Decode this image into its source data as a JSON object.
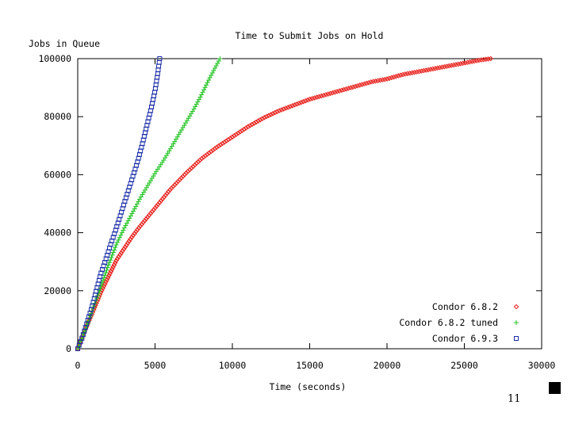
{
  "page": {
    "number": "11"
  },
  "chart_data": {
    "type": "scatter",
    "title": "Time to Submit Jobs on Hold",
    "xlabel": "Time (seconds)",
    "ylabel": "Jobs in Queue",
    "xlim": [
      0,
      30000
    ],
    "ylim": [
      0,
      100000
    ],
    "x_ticks": [
      "0",
      "5000",
      "10000",
      "15000",
      "20000",
      "25000",
      "30000"
    ],
    "y_ticks": [
      "0",
      "20000",
      "40000",
      "60000",
      "80000",
      "100000"
    ],
    "grid": false,
    "legend_position": "bottom-right",
    "series": [
      {
        "name": "Condor 6.8.2",
        "color": "#e8211c",
        "marker": "diamond",
        "points": [
          [
            0,
            0
          ],
          [
            300,
            4000
          ],
          [
            600,
            8000
          ],
          [
            1000,
            13000
          ],
          [
            1500,
            19500
          ],
          [
            2000,
            25000
          ],
          [
            2500,
            30500
          ],
          [
            3000,
            34500
          ],
          [
            3500,
            38500
          ],
          [
            4000,
            42000
          ],
          [
            5000,
            48500
          ],
          [
            6000,
            55000
          ],
          [
            7000,
            60500
          ],
          [
            8000,
            65500
          ],
          [
            9000,
            69500
          ],
          [
            10000,
            73000
          ],
          [
            11000,
            76500
          ],
          [
            12000,
            79500
          ],
          [
            13000,
            82000
          ],
          [
            14000,
            84000
          ],
          [
            15000,
            86000
          ],
          [
            16000,
            87500
          ],
          [
            17000,
            89000
          ],
          [
            18000,
            90500
          ],
          [
            19000,
            92000
          ],
          [
            20000,
            93000
          ],
          [
            21000,
            94500
          ],
          [
            22000,
            95500
          ],
          [
            23000,
            96500
          ],
          [
            24000,
            97500
          ],
          [
            25000,
            98500
          ],
          [
            26000,
            99500
          ],
          [
            26700,
            100000
          ]
        ]
      },
      {
        "name": "Condor 6.8.2 tuned",
        "color": "#22c422",
        "marker": "plus",
        "points": [
          [
            0,
            0
          ],
          [
            300,
            4000
          ],
          [
            600,
            8000
          ],
          [
            1000,
            14000
          ],
          [
            1500,
            21500
          ],
          [
            2000,
            29000
          ],
          [
            2500,
            36000
          ],
          [
            3000,
            41500
          ],
          [
            3500,
            46500
          ],
          [
            4000,
            51500
          ],
          [
            4500,
            56000
          ],
          [
            5000,
            60500
          ],
          [
            5500,
            64500
          ],
          [
            6000,
            69000
          ],
          [
            6500,
            73500
          ],
          [
            7000,
            78000
          ],
          [
            7500,
            82500
          ],
          [
            8000,
            87500
          ],
          [
            8500,
            93000
          ],
          [
            9000,
            98000
          ],
          [
            9200,
            100000
          ]
        ]
      },
      {
        "name": "Condor 6.9.3",
        "color": "#1c2fa8",
        "marker": "square",
        "points": [
          [
            0,
            0
          ],
          [
            300,
            4000
          ],
          [
            600,
            9000
          ],
          [
            900,
            14000
          ],
          [
            1200,
            20000
          ],
          [
            1500,
            26000
          ],
          [
            1800,
            30500
          ],
          [
            2100,
            35500
          ],
          [
            2400,
            40000
          ],
          [
            2700,
            45000
          ],
          [
            3000,
            50000
          ],
          [
            3300,
            55000
          ],
          [
            3600,
            60000
          ],
          [
            3900,
            65000
          ],
          [
            4200,
            71000
          ],
          [
            4500,
            77500
          ],
          [
            4800,
            84000
          ],
          [
            5000,
            89000
          ],
          [
            5150,
            94000
          ],
          [
            5300,
            100000
          ]
        ]
      }
    ]
  }
}
